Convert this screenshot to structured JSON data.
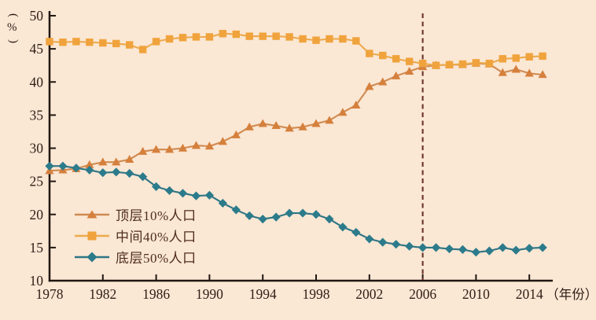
{
  "figure": {
    "background": "#fae7d4",
    "axis_color": "#211711",
    "tick_label_color": "#2f1e15",
    "legend_text_color": "#4f2d1f"
  },
  "ylabel_parts": {
    "open": "(",
    "unit": "%",
    "close": ")"
  },
  "chart_data": {
    "type": "line",
    "title": "",
    "xlabel": "（年份）",
    "ylabel": "(%)",
    "x": [
      1978,
      1979,
      1980,
      1981,
      1982,
      1983,
      1984,
      1985,
      1986,
      1987,
      1988,
      1989,
      1990,
      1991,
      1992,
      1993,
      1994,
      1995,
      1996,
      1997,
      1998,
      1999,
      2000,
      2001,
      2002,
      2003,
      2004,
      2005,
      2006,
      2007,
      2008,
      2009,
      2010,
      2011,
      2012,
      2013,
      2014,
      2015
    ],
    "series": [
      {
        "name": "顶层10%人口",
        "marker": "triangle",
        "marker_color": "#d5803c",
        "line_color": "#d08a50",
        "values": [
          26.6,
          26.7,
          26.9,
          27.5,
          27.9,
          27.9,
          28.3,
          29.5,
          29.8,
          29.8,
          30.0,
          30.4,
          30.3,
          31.0,
          32.0,
          33.2,
          33.7,
          33.4,
          33.0,
          33.2,
          33.7,
          34.2,
          35.4,
          36.5,
          39.3,
          40.0,
          40.9,
          41.6,
          42.3,
          42.5,
          42.6,
          42.6,
          42.8,
          42.7,
          41.4,
          41.9,
          41.3,
          41.1
        ]
      },
      {
        "name": "中间40%人口",
        "marker": "square",
        "marker_color": "#f0a33c",
        "line_color": "#ecaa4d",
        "values": [
          46.1,
          46.0,
          46.1,
          46.0,
          45.9,
          45.8,
          45.6,
          44.9,
          46.1,
          46.5,
          46.7,
          46.8,
          46.8,
          47.3,
          47.2,
          46.9,
          46.9,
          46.9,
          46.8,
          46.5,
          46.3,
          46.5,
          46.5,
          46.2,
          44.3,
          44.0,
          43.5,
          43.1,
          42.8,
          42.5,
          42.6,
          42.7,
          42.9,
          42.8,
          43.5,
          43.6,
          43.8,
          43.9
        ]
      },
      {
        "name": "底层50%人口",
        "marker": "diamond",
        "marker_color": "#2b7b8b",
        "line_color": "#2f7585",
        "values": [
          27.3,
          27.3,
          27.0,
          26.7,
          26.3,
          26.4,
          26.2,
          25.7,
          24.2,
          23.6,
          23.2,
          22.8,
          22.9,
          21.7,
          20.7,
          19.8,
          19.3,
          19.6,
          20.2,
          20.2,
          20.0,
          19.3,
          18.1,
          17.3,
          16.3,
          15.8,
          15.5,
          15.2,
          15.0,
          15.0,
          14.8,
          14.7,
          14.3,
          14.5,
          15.0,
          14.6,
          14.9,
          15.0
        ]
      }
    ],
    "ylim": [
      10,
      50
    ],
    "yticks": [
      10,
      15,
      20,
      25,
      30,
      35,
      40,
      45,
      50
    ],
    "xticks": [
      1978,
      1982,
      1986,
      1990,
      1994,
      1998,
      2002,
      2006,
      2010,
      2014
    ],
    "reference_line": {
      "x": 2006,
      "style": "dashed",
      "color": "#6b3428"
    },
    "grid": false,
    "legend_position": "lower-left"
  }
}
